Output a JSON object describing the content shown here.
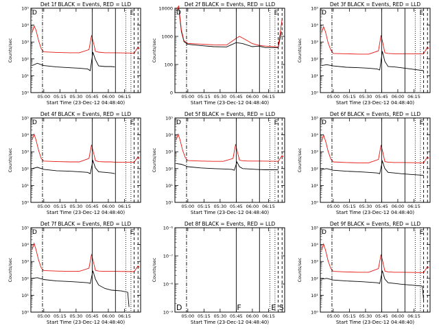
{
  "common": {
    "ylabel": "Counts/sec",
    "xlabel": "Start Time (23-Dec-12 04:48:40)",
    "x_ticks": [
      "05:00",
      "05:15",
      "05:30",
      "05:45",
      "06:00",
      "06:15"
    ],
    "colors": {
      "events": "#000000",
      "lld": "#e8120c",
      "axis": "#000000",
      "background": "#ffffff"
    },
    "markers": {
      "dash_dot": 4.98,
      "solid_1": 5.75,
      "solid_2": 6.11,
      "dotted_1": 6.27,
      "dotted_2": 6.35,
      "dashed_1": 6.4,
      "dashed_2": 6.46
    },
    "marker_letters": [
      "D",
      "F",
      "E",
      "S"
    ]
  },
  "chart_data": [
    {
      "type": "line",
      "title": "Det 1f BLACK = Events, RED = LLD",
      "ylim": [
        1,
        100000
      ],
      "log_y": true,
      "yticks": [
        "10⁰",
        "10¹",
        "10²",
        "10³",
        "10⁴",
        "10⁵"
      ],
      "xlim": [
        4.8,
        6.5
      ],
      "series": [
        {
          "name": "Events",
          "color": "#000000",
          "x": [
            4.82,
            4.9,
            5.0,
            5.2,
            5.4,
            5.55,
            5.68,
            5.72,
            5.76,
            5.8,
            5.85,
            5.95,
            6.05,
            6.1
          ],
          "y": [
            40,
            55,
            40,
            33,
            30,
            28,
            25,
            20,
            250,
            90,
            38,
            35,
            35,
            33
          ]
        },
        {
          "name": "LLD",
          "color": "#e8120c",
          "x": [
            4.82,
            4.85,
            4.88,
            4.92,
            4.96,
            5.0,
            5.2,
            5.4,
            5.55,
            5.7,
            5.74,
            5.77,
            5.8,
            5.85,
            5.95,
            6.05,
            6.1,
            6.4,
            6.46,
            6.48
          ],
          "y": [
            3500,
            9000,
            5000,
            1200,
            400,
            260,
            240,
            230,
            230,
            350,
            2500,
            900,
            280,
            250,
            230,
            230,
            230,
            220,
            500,
            400
          ]
        }
      ]
    },
    {
      "type": "line",
      "title": "Det 2f BLACK = Events, RED = LLD",
      "ylim": [
        0,
        10000
      ],
      "log_y": true,
      "yticks": [
        "0",
        "100",
        "1000",
        "10000"
      ],
      "xlim": [
        4.8,
        6.5
      ],
      "series": [
        {
          "name": "Events",
          "color": "#000000",
          "x": [
            4.82,
            4.86,
            4.9,
            4.94,
            5.0,
            5.2,
            5.4,
            5.6,
            5.75,
            5.85,
            6.0,
            6.1,
            6.2,
            6.4,
            6.45
          ],
          "y": [
            8000,
            10000,
            1500,
            650,
            520,
            470,
            430,
            420,
            600,
            550,
            430,
            450,
            400,
            400,
            1500
          ]
        },
        {
          "name": "LLD",
          "color": "#e8120c",
          "x": [
            4.82,
            4.86,
            4.9,
            4.94,
            5.0,
            5.2,
            5.4,
            5.6,
            5.75,
            5.8,
            5.9,
            6.0,
            6.1,
            6.2,
            6.4,
            6.46
          ],
          "y": [
            9000,
            12000,
            1700,
            700,
            560,
            530,
            500,
            490,
            850,
            1000,
            750,
            550,
            480,
            450,
            420,
            4000
          ]
        }
      ]
    },
    {
      "type": "line",
      "title": "Det 3f BLACK = Events, RED = LLD",
      "ylim": [
        1,
        100000
      ],
      "log_y": true,
      "yticks": [
        "10⁰",
        "10¹",
        "10²",
        "10³",
        "10⁴",
        "10⁵"
      ],
      "xlim": [
        4.8,
        6.5
      ],
      "series": [
        {
          "name": "Events",
          "color": "#000000",
          "x": [
            4.82,
            4.9,
            5.0,
            5.2,
            5.4,
            5.55,
            5.68,
            5.72,
            5.76,
            5.8,
            5.85,
            5.95,
            6.05,
            6.2,
            6.4
          ],
          "y": [
            40,
            45,
            38,
            32,
            30,
            28,
            25,
            22,
            280,
            70,
            35,
            33,
            30,
            25,
            20
          ]
        },
        {
          "name": "LLD",
          "color": "#e8120c",
          "x": [
            4.82,
            4.85,
            4.88,
            4.92,
            4.96,
            5.0,
            5.2,
            5.4,
            5.55,
            5.7,
            5.74,
            5.77,
            5.8,
            5.85,
            5.95,
            6.05,
            6.1,
            6.4,
            6.46,
            6.48
          ],
          "y": [
            3500,
            8000,
            4000,
            900,
            350,
            210,
            200,
            190,
            190,
            300,
            2500,
            800,
            230,
            210,
            200,
            200,
            200,
            200,
            500,
            400
          ]
        }
      ]
    },
    {
      "type": "line",
      "title": "Det 4f BLACK = Events, RED = LLD",
      "ylim": [
        1,
        100000
      ],
      "log_y": true,
      "yticks": [
        "10⁰",
        "10¹",
        "10²",
        "10³",
        "10⁴",
        "10⁵"
      ],
      "xlim": [
        4.8,
        6.5
      ],
      "series": [
        {
          "name": "Events",
          "color": "#000000",
          "x": [
            4.82,
            4.9,
            5.0,
            5.2,
            5.4,
            5.55,
            5.68,
            5.72,
            5.76,
            5.8,
            5.85,
            5.95,
            6.05,
            6.1
          ],
          "y": [
            100,
            120,
            90,
            75,
            70,
            65,
            60,
            50,
            300,
            110,
            65,
            60,
            55,
            50
          ]
        },
        {
          "name": "LLD",
          "color": "#e8120c",
          "x": [
            4.82,
            4.85,
            4.88,
            4.92,
            4.96,
            5.0,
            5.2,
            5.4,
            5.55,
            5.7,
            5.74,
            5.77,
            5.8,
            5.85,
            5.95,
            6.05,
            6.1,
            6.4,
            6.46,
            6.48
          ],
          "y": [
            5000,
            11000,
            5000,
            1200,
            400,
            280,
            260,
            250,
            250,
            400,
            2600,
            900,
            300,
            260,
            250,
            250,
            240,
            240,
            500,
            400
          ]
        }
      ]
    },
    {
      "type": "line",
      "title": "Det 5f BLACK = Events, RED = LLD",
      "ylim": [
        1,
        100000
      ],
      "log_y": true,
      "yticks": [
        "10⁰",
        "10¹",
        "10²",
        "10³",
        "10⁴",
        "10⁵"
      ],
      "xlim": [
        4.8,
        6.5
      ],
      "series": [
        {
          "name": "Events",
          "color": "#000000",
          "x": [
            4.82,
            4.9,
            5.0,
            5.2,
            5.4,
            5.55,
            5.68,
            5.72,
            5.76,
            5.8,
            5.85,
            5.95,
            6.05,
            6.2,
            6.4
          ],
          "y": [
            200,
            180,
            130,
            110,
            100,
            95,
            90,
            80,
            250,
            130,
            100,
            95,
            90,
            85,
            85
          ]
        },
        {
          "name": "LLD",
          "color": "#e8120c",
          "x": [
            4.82,
            4.85,
            4.88,
            4.92,
            4.96,
            5.0,
            5.2,
            5.4,
            5.55,
            5.7,
            5.74,
            5.77,
            5.8,
            5.85,
            5.95,
            6.05,
            6.1,
            6.4,
            6.46,
            6.48
          ],
          "y": [
            5000,
            11000,
            5000,
            1200,
            450,
            300,
            280,
            270,
            270,
            400,
            2800,
            900,
            320,
            290,
            280,
            280,
            280,
            270,
            600,
            500
          ]
        }
      ]
    },
    {
      "type": "line",
      "title": "Det 6f BLACK = Events, RED = LLD",
      "ylim": [
        1,
        100000
      ],
      "log_y": true,
      "yticks": [
        "10⁰",
        "10¹",
        "10²",
        "10³",
        "10⁴",
        "10⁵"
      ],
      "xlim": [
        4.8,
        6.5
      ],
      "series": [
        {
          "name": "Events",
          "color": "#000000",
          "x": [
            4.82,
            4.9,
            5.0,
            5.2,
            5.4,
            5.55,
            5.68,
            5.72,
            5.76,
            5.8,
            5.85,
            5.95,
            6.05,
            6.2,
            6.4
          ],
          "y": [
            90,
            100,
            80,
            70,
            65,
            60,
            55,
            50,
            280,
            100,
            60,
            55,
            50,
            45,
            40
          ]
        },
        {
          "name": "LLD",
          "color": "#e8120c",
          "x": [
            4.82,
            4.85,
            4.88,
            4.92,
            4.96,
            5.0,
            5.2,
            5.4,
            5.55,
            5.7,
            5.74,
            5.77,
            5.8,
            5.85,
            5.95,
            6.05,
            6.1,
            6.4,
            6.46,
            6.48
          ],
          "y": [
            4000,
            10000,
            4500,
            1100,
            380,
            250,
            230,
            220,
            220,
            350,
            2500,
            850,
            260,
            240,
            230,
            230,
            230,
            220,
            500,
            400
          ]
        }
      ]
    },
    {
      "type": "line",
      "title": "Det 7f BLACK = Events, RED = LLD",
      "ylim": [
        1,
        100000
      ],
      "log_y": true,
      "yticks": [
        "10⁰",
        "10¹",
        "10²",
        "10³",
        "10⁴",
        "10⁵"
      ],
      "xlim": [
        4.8,
        6.5
      ],
      "series": [
        {
          "name": "Events",
          "color": "#000000",
          "x": [
            4.82,
            4.9,
            5.0,
            5.2,
            5.4,
            5.55,
            5.68,
            5.72,
            5.76,
            5.8,
            5.85,
            5.95,
            6.05,
            6.2,
            6.3,
            6.32
          ],
          "y": [
            100,
            110,
            85,
            70,
            65,
            60,
            55,
            50,
            280,
            90,
            40,
            25,
            20,
            18,
            15,
            2
          ]
        },
        {
          "name": "LLD",
          "color": "#e8120c",
          "x": [
            4.82,
            4.85,
            4.88,
            4.92,
            4.96,
            5.0,
            5.2,
            5.4,
            5.55,
            5.7,
            5.74,
            5.77,
            5.8,
            5.85,
            5.95,
            6.05,
            6.1,
            6.4,
            6.46,
            6.48
          ],
          "y": [
            5000,
            12000,
            5000,
            1200,
            420,
            290,
            270,
            260,
            260,
            400,
            2700,
            900,
            300,
            270,
            260,
            260,
            260,
            250,
            550,
            450
          ]
        }
      ]
    },
    {
      "type": "line",
      "title": "Det 8f BLACK = Events, RED = LLD",
      "ylim": [
        1e-09,
        1e-06
      ],
      "log_y": true,
      "yticks": [
        "10⁻⁹",
        "10⁻⁸",
        "10⁻⁷",
        "10⁻⁶"
      ],
      "xlim": [
        4.8,
        6.5
      ],
      "series": []
    },
    {
      "type": "line",
      "title": "Det 9f BLACK = Events, RED = LLD",
      "ylim": [
        1,
        100000
      ],
      "log_y": true,
      "yticks": [
        "10⁰",
        "10¹",
        "10²",
        "10³",
        "10⁴",
        "10⁵"
      ],
      "xlim": [
        4.8,
        6.5
      ],
      "series": [
        {
          "name": "Events",
          "color": "#000000",
          "x": [
            4.82,
            4.9,
            5.0,
            5.2,
            5.4,
            5.55,
            5.68,
            5.72,
            5.76,
            5.8,
            5.85,
            5.95,
            6.05,
            6.2,
            6.38,
            6.4
          ],
          "y": [
            90,
            100,
            80,
            70,
            65,
            60,
            55,
            50,
            280,
            90,
            55,
            50,
            45,
            40,
            35,
            5
          ]
        },
        {
          "name": "LLD",
          "color": "#e8120c",
          "x": [
            4.82,
            4.85,
            4.88,
            4.92,
            4.96,
            5.0,
            5.2,
            5.4,
            5.55,
            5.7,
            5.74,
            5.77,
            5.8,
            5.85,
            5.95,
            6.05,
            6.1,
            6.4,
            6.46,
            6.48
          ],
          "y": [
            4500,
            11000,
            4800,
            1100,
            400,
            260,
            240,
            230,
            230,
            380,
            2600,
            880,
            270,
            240,
            230,
            230,
            230,
            220,
            500,
            420
          ]
        }
      ]
    }
  ]
}
